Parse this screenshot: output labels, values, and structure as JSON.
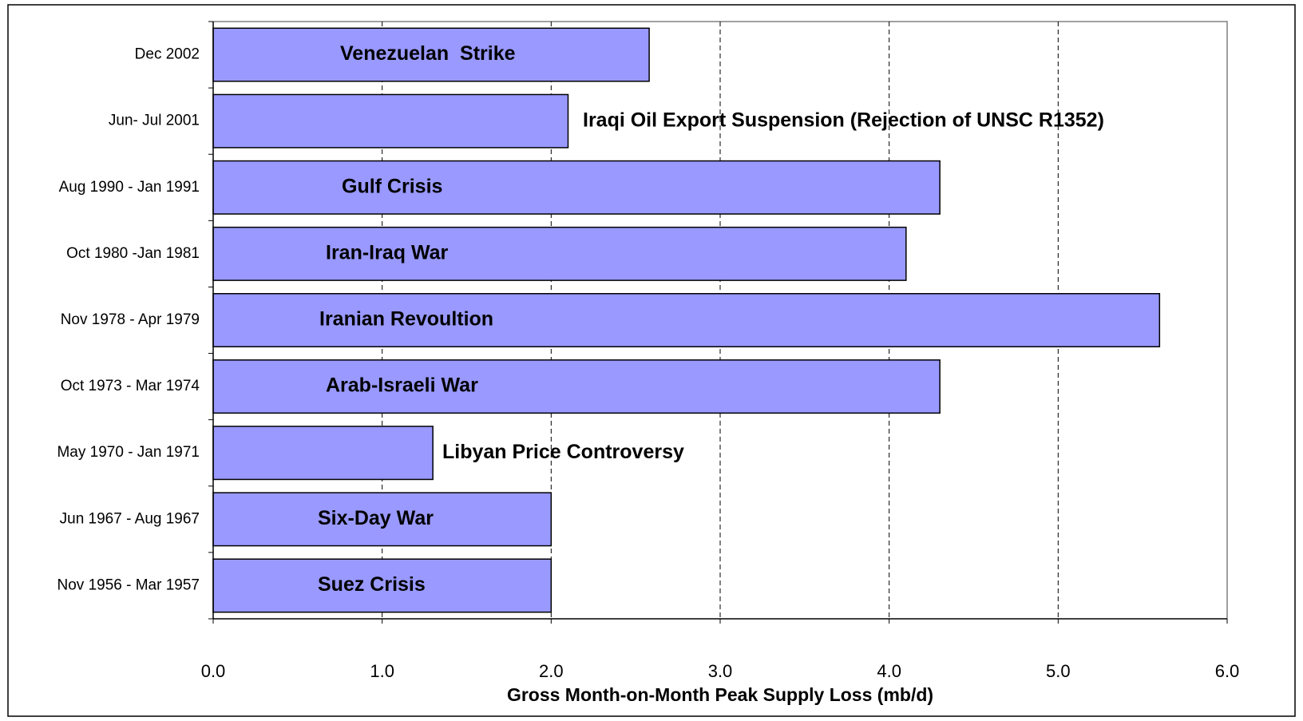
{
  "chart_data": {
    "type": "bar",
    "orientation": "horizontal",
    "x_label": "Gross Month-on-Month Peak Supply Loss (mb/d)",
    "categories": [
      "Dec 2002",
      "Jun- Jul 2001",
      "Aug 1990 - Jan 1991",
      "Oct 1980 -Jan 1981",
      "Nov 1978 - Apr 1979",
      "Oct 1973 - Mar 1974",
      "May 1970 - Jan 1971",
      "Jun 1967 - Aug 1967",
      "Nov 1956 - Mar 1957"
    ],
    "values": [
      2.58,
      2.1,
      4.3,
      4.1,
      5.6,
      4.3,
      1.3,
      2.0,
      2.0
    ],
    "annotations": [
      "Venezuelan  Strike",
      "Iraqi Oil Export Suspension (Rejection of UNSC R1352)",
      "Gulf Crisis",
      "Iran-Iraq War",
      "Iranian Revoultion",
      "Arab-Israeli War",
      "Libyan Price Controversy",
      "Six-Day War",
      "Suez Crisis"
    ],
    "color": "#9999ff",
    "xlim": [
      0,
      6
    ],
    "xticks": [
      {
        "value": 0,
        "label": "0.0"
      },
      {
        "value": 1,
        "label": "1.0"
      },
      {
        "value": 2,
        "label": "2.0"
      },
      {
        "value": 3,
        "label": "3.0"
      },
      {
        "value": 4,
        "label": "4.0"
      },
      {
        "value": 5,
        "label": "5.0"
      },
      {
        "value": 6,
        "label": "6.0"
      }
    ],
    "grid": true
  }
}
